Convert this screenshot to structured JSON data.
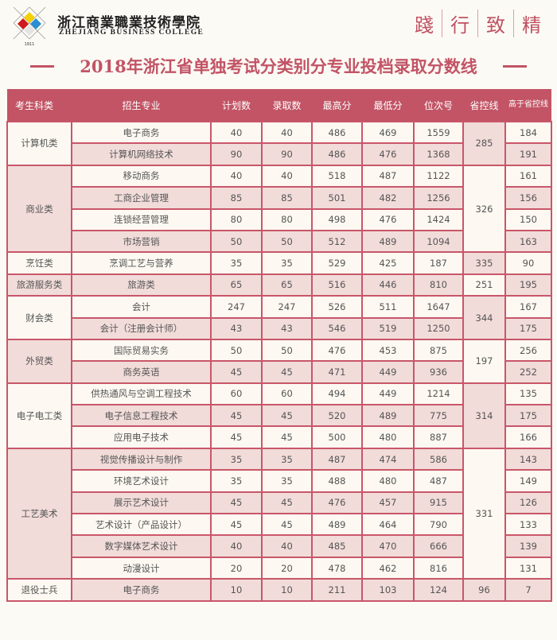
{
  "header": {
    "school_cn": "浙江商業職業技術學院",
    "school_en": "ZHEJIANG BUSINESS COLLEGE",
    "logo_year": "1911",
    "motto": [
      "踐",
      "行",
      "致",
      "精"
    ],
    "title": "2018年浙江省单独考试分类别分专业投档录取分数线"
  },
  "colors": {
    "accent": "#c25465",
    "border": "#c9566a",
    "row_light": "#fdf9f2",
    "row_pink": "#f1dcd9"
  },
  "table": {
    "columns": [
      "考生科类",
      "招生专业",
      "计划数",
      "录取数",
      "最高分",
      "最低分",
      "位次号",
      "省控线",
      "高于省控线"
    ],
    "groups": [
      {
        "category": "计算机类",
        "control_line": "285",
        "rows": [
          [
            "电子商务",
            "40",
            "40",
            "486",
            "469",
            "1559",
            "184"
          ],
          [
            "计算机网络技术",
            "90",
            "90",
            "486",
            "476",
            "1368",
            "191"
          ]
        ]
      },
      {
        "category": "商业类",
        "control_line": "326",
        "rows": [
          [
            "移动商务",
            "40",
            "40",
            "518",
            "487",
            "1122",
            "161"
          ],
          [
            "工商企业管理",
            "85",
            "85",
            "501",
            "482",
            "1256",
            "156"
          ],
          [
            "连锁经营管理",
            "80",
            "80",
            "498",
            "476",
            "1424",
            "150"
          ],
          [
            "市场营销",
            "50",
            "50",
            "512",
            "489",
            "1094",
            "163"
          ]
        ]
      },
      {
        "category": "烹饪类",
        "control_line": "335",
        "rows": [
          [
            "烹调工艺与营养",
            "35",
            "35",
            "529",
            "425",
            "187",
            "90"
          ]
        ]
      },
      {
        "category": "旅游服务类",
        "control_line": "251",
        "rows": [
          [
            "旅游类",
            "65",
            "65",
            "516",
            "446",
            "810",
            "195"
          ]
        ]
      },
      {
        "category": "财会类",
        "control_line": "344",
        "rows": [
          [
            "会计",
            "247",
            "247",
            "526",
            "511",
            "1647",
            "167"
          ],
          [
            "会计（注册会计师）",
            "43",
            "43",
            "546",
            "519",
            "1250",
            "175"
          ]
        ]
      },
      {
        "category": "外贸类",
        "control_line": "197",
        "rows": [
          [
            "国际贸易实务",
            "50",
            "50",
            "476",
            "453",
            "875",
            "256"
          ],
          [
            "商务英语",
            "45",
            "45",
            "471",
            "449",
            "936",
            "252"
          ]
        ]
      },
      {
        "category": "电子电工类",
        "control_line": "314",
        "rows": [
          [
            "供热通风与空调工程技术",
            "60",
            "60",
            "494",
            "449",
            "1214",
            "135"
          ],
          [
            "电子信息工程技术",
            "45",
            "45",
            "520",
            "489",
            "775",
            "175"
          ],
          [
            "应用电子技术",
            "45",
            "45",
            "500",
            "480",
            "887",
            "166"
          ]
        ]
      },
      {
        "category": "工艺美术",
        "control_line": "331",
        "rows": [
          [
            "视觉传播设计与制作",
            "35",
            "35",
            "487",
            "474",
            "586",
            "143"
          ],
          [
            "环境艺术设计",
            "35",
            "35",
            "488",
            "480",
            "487",
            "149"
          ],
          [
            "展示艺术设计",
            "45",
            "45",
            "476",
            "457",
            "915",
            "126"
          ],
          [
            "艺术设计（产品设计）",
            "45",
            "45",
            "489",
            "464",
            "790",
            "133"
          ],
          [
            "数字媒体艺术设计",
            "40",
            "40",
            "485",
            "470",
            "666",
            "139"
          ],
          [
            "动漫设计",
            "20",
            "20",
            "478",
            "462",
            "816",
            "131"
          ]
        ]
      },
      {
        "category": "退役士兵",
        "control_line": "96",
        "rows": [
          [
            "电子商务",
            "10",
            "10",
            "211",
            "103",
            "124",
            "7"
          ]
        ]
      }
    ]
  }
}
